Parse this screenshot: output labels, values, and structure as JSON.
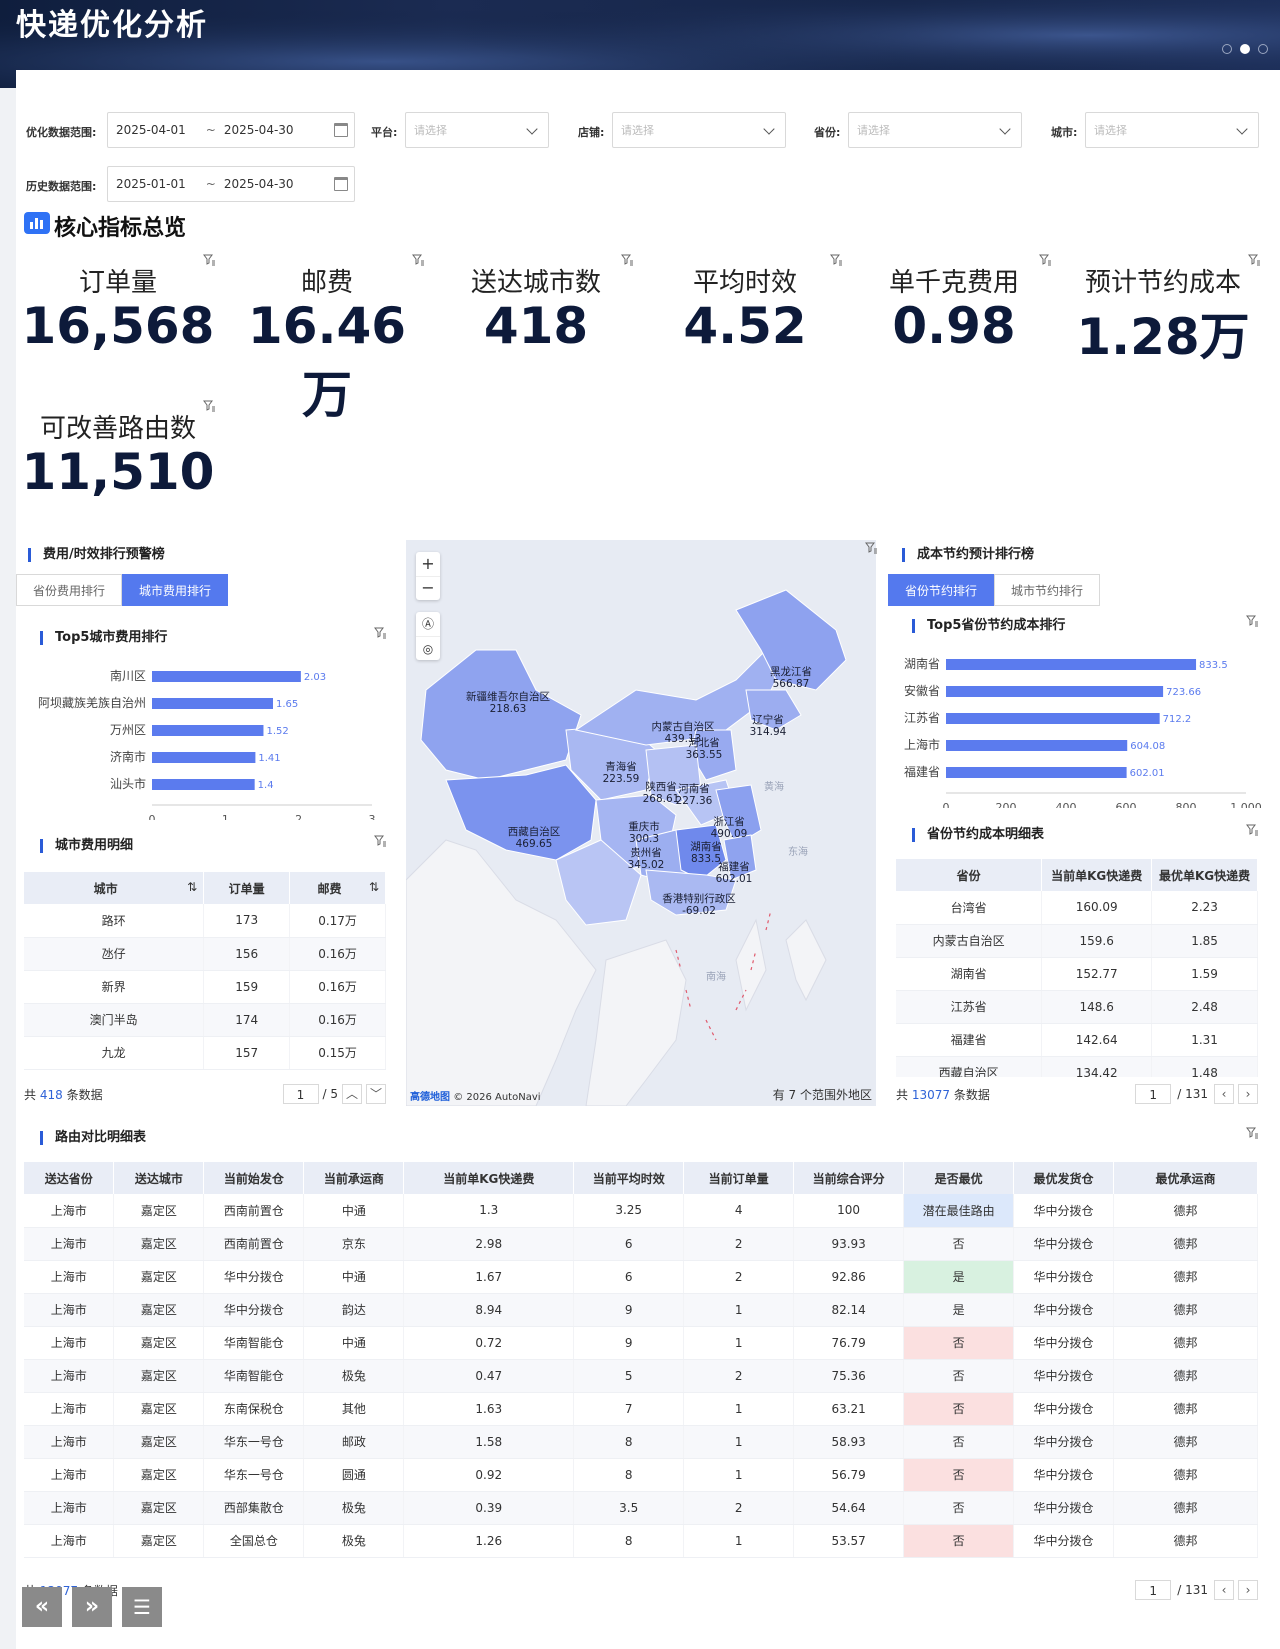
{
  "page_title": "快递优化分析",
  "filters": {
    "opt_range_label": "优化数据范围:",
    "opt_start": "2025-04-01",
    "opt_end": "2025-04-30",
    "hist_range_label": "历史数据范围:",
    "hist_start": "2025-01-01",
    "hist_end": "2025-04-30",
    "tilde": "~",
    "platform_label": "平台:",
    "shop_label": "店铺:",
    "province_label": "省份:",
    "city_label": "城市:",
    "placeholder": "请选择"
  },
  "core": {
    "title": "核心指标总览",
    "kpis": [
      {
        "label": "订单量",
        "value": "16,568"
      },
      {
        "label": "邮费",
        "value": "16.46万"
      },
      {
        "label": "送达城市数",
        "value": "418"
      },
      {
        "label": "平均时效",
        "value": "4.52"
      },
      {
        "label": "单千克费用",
        "value": "0.98"
      },
      {
        "label": "预计节约成本",
        "value": "1.28万"
      },
      {
        "label": "可改善路由数",
        "value": "11,510"
      }
    ]
  },
  "left": {
    "title": "费用/时效排行预警榜",
    "tabs": [
      "省份费用排行",
      "城市费用排行"
    ],
    "chart_title": "Top5城市费用排行",
    "detail_title": "城市费用明细",
    "table_headers": [
      "城市",
      "订单量",
      "邮费"
    ],
    "rows": [
      [
        "路环",
        "173",
        "0.17万"
      ],
      [
        "氹仔",
        "156",
        "0.16万"
      ],
      [
        "新界",
        "159",
        "0.16万"
      ],
      [
        "澳门半岛",
        "174",
        "0.16万"
      ],
      [
        "九龙",
        "157",
        "0.15万"
      ]
    ],
    "total_prefix": "共",
    "total": "418",
    "total_suffix": "条数据",
    "page": "1",
    "pages": "/ 5"
  },
  "map": {
    "zoom_in": "+",
    "zoom_out": "−",
    "attribution_brand": "高德地图",
    "attribution": "© 2026 AutoNavi",
    "out_of_range": "有 7 个范围外地区",
    "sea_labels": [
      "黄海",
      "东海",
      "南海"
    ],
    "regions": [
      {
        "name": "黑龙江省",
        "value": "566.87"
      },
      {
        "name": "新疆维吾尔自治区",
        "value": "218.63"
      },
      {
        "name": "辽宁省",
        "value": "314.94"
      },
      {
        "name": "内蒙古自治区",
        "value": "439.13"
      },
      {
        "name": "河北省",
        "value": "363.55"
      },
      {
        "name": "青海省",
        "value": "223.59"
      },
      {
        "name": "陕西省",
        "value": "268.61"
      },
      {
        "name": "河南省",
        "value": "227.36"
      },
      {
        "name": "西藏自治区",
        "value": "469.65"
      },
      {
        "name": "重庆市",
        "value": "300.3"
      },
      {
        "name": "浙江省",
        "value": "490.09"
      },
      {
        "name": "贵州省",
        "value": "345.02"
      },
      {
        "name": "湖南省",
        "value": "833.5"
      },
      {
        "name": "福建省",
        "value": "602.01"
      },
      {
        "name": "香港特别行政区",
        "value": "-69.02"
      }
    ]
  },
  "right": {
    "title": "成本节约预计排行榜",
    "tabs": [
      "省份节约排行",
      "城市节约排行"
    ],
    "chart_title": "Top5省份节约成本排行",
    "detail_title": "省份节约成本明细表",
    "table_headers": [
      "省份",
      "当前单KG快递费",
      "最优单KG快递费"
    ],
    "rows": [
      [
        "台湾省",
        "160.09",
        "2.23"
      ],
      [
        "内蒙古自治区",
        "159.6",
        "1.85"
      ],
      [
        "湖南省",
        "152.77",
        "1.59"
      ],
      [
        "江苏省",
        "148.6",
        "2.48"
      ],
      [
        "福建省",
        "142.64",
        "1.31"
      ],
      [
        "西藏自治区",
        "134.42",
        "1.48"
      ]
    ],
    "total_prefix": "共",
    "total": "13077",
    "total_suffix": "条数据",
    "page": "1",
    "pages": "/ 131"
  },
  "route": {
    "title": "路由对比明细表",
    "headers": [
      "送达省份",
      "送达城市",
      "当前始发仓",
      "当前承运商",
      "当前单KG快递费",
      "当前平均时效",
      "当前订单量",
      "当前综合评分",
      "是否最优",
      "最优发货仓",
      "最优承运商"
    ],
    "rows": [
      [
        "上海市",
        "嘉定区",
        "西南前置仓",
        "中通",
        "1.3",
        "3.25",
        "4",
        "100",
        "潜在最佳路由",
        "华中分拨仓",
        "德邦"
      ],
      [
        "上海市",
        "嘉定区",
        "西南前置仓",
        "京东",
        "2.98",
        "6",
        "2",
        "93.93",
        "否",
        "华中分拨仓",
        "德邦"
      ],
      [
        "上海市",
        "嘉定区",
        "华中分拨仓",
        "中通",
        "1.67",
        "6",
        "2",
        "92.86",
        "是",
        "华中分拨仓",
        "德邦"
      ],
      [
        "上海市",
        "嘉定区",
        "华中分拨仓",
        "韵达",
        "8.94",
        "9",
        "1",
        "82.14",
        "是",
        "华中分拨仓",
        "德邦"
      ],
      [
        "上海市",
        "嘉定区",
        "华南智能仓",
        "中通",
        "0.72",
        "9",
        "1",
        "76.79",
        "否",
        "华中分拨仓",
        "德邦"
      ],
      [
        "上海市",
        "嘉定区",
        "华南智能仓",
        "极兔",
        "0.47",
        "5",
        "2",
        "75.36",
        "否",
        "华中分拨仓",
        "德邦"
      ],
      [
        "上海市",
        "嘉定区",
        "东南保税仓",
        "其他",
        "1.63",
        "7",
        "1",
        "63.21",
        "否",
        "华中分拨仓",
        "德邦"
      ],
      [
        "上海市",
        "嘉定区",
        "华东一号仓",
        "邮政",
        "1.58",
        "8",
        "1",
        "58.93",
        "否",
        "华中分拨仓",
        "德邦"
      ],
      [
        "上海市",
        "嘉定区",
        "华东一号仓",
        "圆通",
        "0.92",
        "8",
        "1",
        "56.79",
        "否",
        "华中分拨仓",
        "德邦"
      ],
      [
        "上海市",
        "嘉定区",
        "西部集散仓",
        "极兔",
        "0.39",
        "3.5",
        "2",
        "54.64",
        "否",
        "华中分拨仓",
        "德邦"
      ],
      [
        "上海市",
        "嘉定区",
        "全国总仓",
        "极兔",
        "1.26",
        "8",
        "1",
        "53.57",
        "否",
        "华中分拨仓",
        "德邦"
      ]
    ],
    "total_prefix": "共",
    "total": "13077",
    "total_suffix": "条数据",
    "page": "1",
    "pages": "/ 131"
  },
  "nav": {
    "prev": "«",
    "next": "»",
    "menu": "☰"
  },
  "chart_data": [
    {
      "type": "bar",
      "title": "Top5城市费用排行",
      "orientation": "horizontal",
      "categories": [
        "南川区",
        "阿坝藏族羌族自治州",
        "万州区",
        "济南市",
        "汕头市"
      ],
      "values": [
        2.03,
        1.65,
        1.52,
        1.41,
        1.4
      ],
      "xlim": [
        0,
        3
      ],
      "xticks": [
        "0",
        "1",
        "2",
        "3"
      ],
      "color": "#5b7bee"
    },
    {
      "type": "bar",
      "title": "Top5省份节约成本排行",
      "orientation": "horizontal",
      "categories": [
        "湖南省",
        "安徽省",
        "江苏省",
        "上海市",
        "福建省"
      ],
      "values": [
        833.5,
        723.66,
        712.2,
        604.08,
        602.01
      ],
      "xlim": [
        0,
        1000
      ],
      "xticks": [
        "0",
        "200",
        "400",
        "600",
        "800",
        "1,000"
      ],
      "color": "#5b7bee"
    }
  ]
}
